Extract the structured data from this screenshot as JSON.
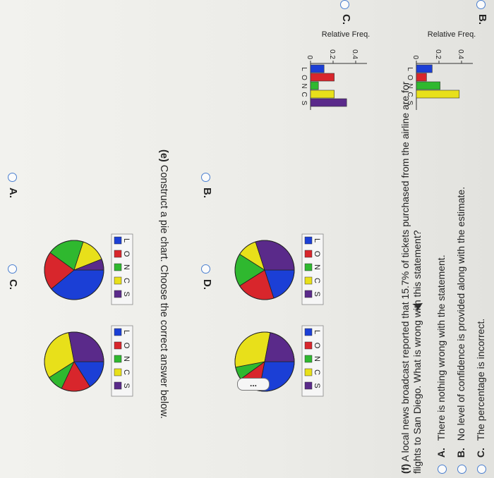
{
  "rel_freq_label": "Relative Freq.",
  "categories": [
    "L",
    "O",
    "N",
    "C",
    "S"
  ],
  "colors": {
    "L": "#1b3fd6",
    "O": "#d8262c",
    "N": "#2fb82f",
    "C": "#e8e01a",
    "S": "#5a2a8a"
  },
  "part_d_options": [
    {
      "letter": "B.",
      "ticks": [
        "0.4",
        "0.2",
        "0"
      ],
      "values": [
        0.14,
        0.09,
        0.21,
        0.38,
        0.0
      ]
    },
    {
      "letter": "C.",
      "ticks": [
        "0.4",
        "0.2",
        "0"
      ],
      "values": [
        0.12,
        0.21,
        0.07,
        0.21,
        0.32
      ]
    }
  ],
  "part_e": {
    "question_label": "(e)",
    "question_text": "Construct a pie chart. Choose the correct answer below.",
    "options": [
      {
        "letter": "A.",
        "slices": [
          0.39,
          0.21,
          0.2,
          0.14,
          0.06
        ]
      },
      {
        "letter": "B.",
        "slices": [
          0.2,
          0.21,
          0.18,
          0.11,
          0.3
        ]
      },
      {
        "letter": "C.",
        "slices": [
          0.16,
          0.16,
          0.09,
          0.31,
          0.28
        ]
      },
      {
        "letter": "D.",
        "slices": [
          0.28,
          0.12,
          0.07,
          0.31,
          0.22
        ]
      }
    ]
  },
  "more_button": "...",
  "part_f": {
    "question_label": "(f)",
    "question_line1": "A local news broadcast reported that 15.7% of tickets purchased from the airline are for",
    "question_line2": "flights to San Diego. What is wrong with this statement?",
    "options": [
      {
        "letter": "A.",
        "text": "There is nothing wrong with the statement."
      },
      {
        "letter": "B.",
        "text": "No level of confidence is provided along with the estimate."
      },
      {
        "letter": "C.",
        "text": "The percentage is incorrect."
      }
    ]
  }
}
